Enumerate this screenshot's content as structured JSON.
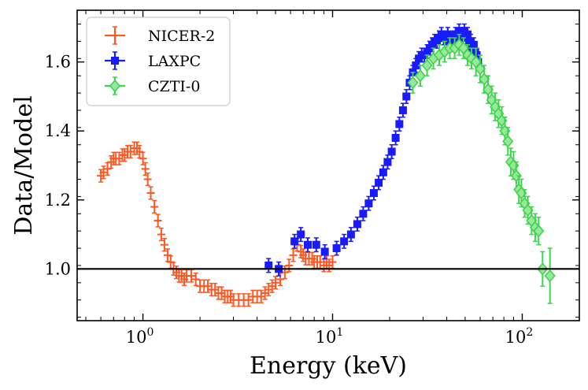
{
  "chart_data": {
    "type": "scatter",
    "xlabel": "Energy (keV)",
    "ylabel": "Data/Model",
    "xscale": "log",
    "xlim": [
      0.45,
      200
    ],
    "ylim": [
      0.85,
      1.75
    ],
    "x_ticks": [
      {
        "base": "10",
        "exp": "0",
        "value": 1
      },
      {
        "base": "10",
        "exp": "1",
        "value": 10
      },
      {
        "base": "10",
        "exp": "2",
        "value": 100
      }
    ],
    "y_ticks": [
      "1.0",
      "1.2",
      "1.4",
      "1.6"
    ],
    "y_tick_values": [
      1.0,
      1.2,
      1.4,
      1.6
    ],
    "reference_line": 1.0,
    "legend_position": "upper-left",
    "series": [
      {
        "name": "NICER-2",
        "color": "#ff5722",
        "marker": "plus",
        "x": [
          0.6,
          0.62,
          0.65,
          0.68,
          0.7,
          0.72,
          0.75,
          0.78,
          0.8,
          0.83,
          0.86,
          0.9,
          0.93,
          0.96,
          1.0,
          1.03,
          1.06,
          1.1,
          1.15,
          1.2,
          1.25,
          1.3,
          1.35,
          1.4,
          1.45,
          1.5,
          1.55,
          1.6,
          1.65,
          1.7,
          1.8,
          1.9,
          2.0,
          2.1,
          2.2,
          2.3,
          2.4,
          2.5,
          2.6,
          2.7,
          2.8,
          2.9,
          3.0,
          3.2,
          3.4,
          3.6,
          3.8,
          4.0,
          4.2,
          4.4,
          4.6,
          4.8,
          5.0,
          5.3,
          5.6,
          5.9,
          6.2,
          6.5,
          6.8,
          7.0,
          7.2,
          7.5,
          7.8,
          8.0,
          8.3,
          8.6,
          9.0,
          9.3,
          9.6,
          10.0
        ],
        "y": [
          1.27,
          1.28,
          1.29,
          1.31,
          1.32,
          1.32,
          1.32,
          1.33,
          1.33,
          1.34,
          1.34,
          1.35,
          1.35,
          1.34,
          1.32,
          1.29,
          1.26,
          1.22,
          1.18,
          1.14,
          1.1,
          1.07,
          1.04,
          1.02,
          1.0,
          0.99,
          0.98,
          0.98,
          0.97,
          0.98,
          0.98,
          0.97,
          0.95,
          0.95,
          0.95,
          0.94,
          0.94,
          0.93,
          0.93,
          0.92,
          0.92,
          0.92,
          0.91,
          0.91,
          0.91,
          0.91,
          0.92,
          0.92,
          0.92,
          0.93,
          0.94,
          0.95,
          0.96,
          0.97,
          0.99,
          1.01,
          1.04,
          1.07,
          1.05,
          1.04,
          1.03,
          1.03,
          1.03,
          1.02,
          1.02,
          1.02,
          1.01,
          1.02,
          1.01,
          1.02
        ],
        "yerr": 0.018
      },
      {
        "name": "LAXPC",
        "color": "#1a1aff",
        "marker": "square",
        "x": [
          4.6,
          5.2,
          6.3,
          6.8,
          7.4,
          8.2,
          9.1,
          10.5,
          11.5,
          12.5,
          13.5,
          14.5,
          15.5,
          16.5,
          17.5,
          18.5,
          19.5,
          20.5,
          21.5,
          22.5,
          23.5,
          24.5,
          25.5,
          26.5,
          27.5,
          28.5,
          29.5,
          30.5,
          31.5,
          32.5,
          33.5,
          34.5,
          35.5,
          36.5,
          37.5,
          38.5,
          39.5,
          40.5,
          41.5,
          42.5,
          43.5,
          44.5,
          45.5,
          46.5,
          47.5,
          48.5,
          49.5,
          50.5,
          51.5,
          52.5,
          53.5,
          54.5,
          55.5,
          56.5,
          57.5,
          58.5
        ],
        "y": [
          1.01,
          1.0,
          1.08,
          1.1,
          1.07,
          1.07,
          1.05,
          1.06,
          1.08,
          1.1,
          1.13,
          1.16,
          1.19,
          1.22,
          1.25,
          1.28,
          1.31,
          1.34,
          1.38,
          1.42,
          1.46,
          1.5,
          1.54,
          1.57,
          1.59,
          1.61,
          1.62,
          1.62,
          1.63,
          1.64,
          1.65,
          1.66,
          1.66,
          1.67,
          1.68,
          1.67,
          1.67,
          1.68,
          1.66,
          1.66,
          1.67,
          1.68,
          1.67,
          1.69,
          1.67,
          1.68,
          1.69,
          1.67,
          1.68,
          1.66,
          1.66,
          1.64,
          1.65,
          1.63,
          1.62,
          1.6
        ],
        "yerr": 0.02
      },
      {
        "name": "CZTI-0",
        "color": "#3cd64b",
        "marker": "diamond",
        "x": [
          26.5,
          29,
          31.5,
          34,
          36.5,
          39,
          41.5,
          44,
          46.5,
          49,
          51.5,
          54,
          57,
          60,
          63,
          66,
          69,
          72,
          75,
          78,
          81,
          84,
          87,
          90,
          93,
          96,
          99,
          103,
          107,
          112,
          117,
          122,
          128,
          140
        ],
        "y": [
          1.54,
          1.56,
          1.59,
          1.61,
          1.62,
          1.63,
          1.64,
          1.64,
          1.65,
          1.64,
          1.62,
          1.61,
          1.6,
          1.58,
          1.55,
          1.52,
          1.49,
          1.47,
          1.45,
          1.43,
          1.4,
          1.37,
          1.31,
          1.3,
          1.27,
          1.23,
          1.22,
          1.19,
          1.17,
          1.14,
          1.12,
          1.11,
          1.0,
          0.98
        ],
        "yerr": [
          0.03,
          0.03,
          0.03,
          0.03,
          0.03,
          0.03,
          0.03,
          0.03,
          0.03,
          0.03,
          0.03,
          0.03,
          0.04,
          0.04,
          0.04,
          0.04,
          0.04,
          0.04,
          0.04,
          0.04,
          0.04,
          0.04,
          0.04,
          0.04,
          0.04,
          0.04,
          0.04,
          0.04,
          0.04,
          0.04,
          0.04,
          0.04,
          0.05,
          0.08
        ]
      }
    ]
  }
}
